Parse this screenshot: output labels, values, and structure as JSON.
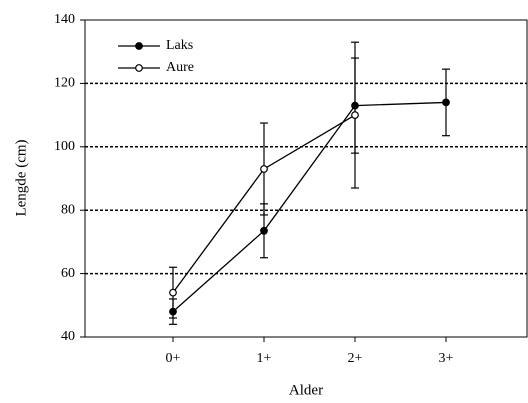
{
  "chart_data": {
    "type": "line",
    "x_label": "Alder",
    "y_label": "Lengde (cm)",
    "categories": [
      "0+",
      "1+",
      "2+",
      "3+"
    ],
    "series": [
      {
        "name": "Laks",
        "color": "#000000",
        "marker": "filled",
        "values": [
          48,
          73.5,
          113,
          114
        ],
        "errors": [
          4,
          8.5,
          15,
          10.5
        ]
      },
      {
        "name": "Aure",
        "color": "#000000",
        "marker": "open",
        "values": [
          54,
          93,
          110,
          null
        ],
        "errors": [
          8,
          14.5,
          23,
          null
        ]
      }
    ],
    "ylim": [
      40,
      140
    ],
    "yticks": [
      40,
      60,
      80,
      100,
      120,
      140
    ],
    "grid": true,
    "legend": "upper-left"
  }
}
